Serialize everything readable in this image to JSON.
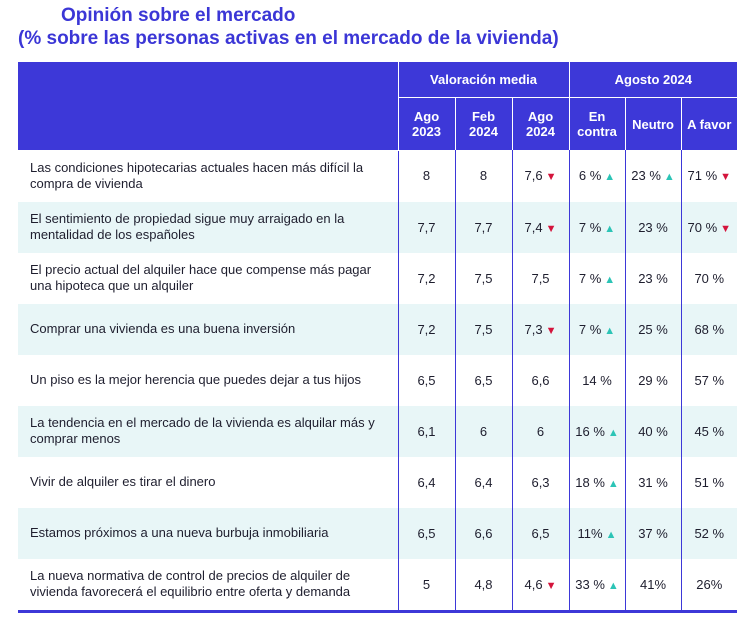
{
  "title": {
    "line1": "Opinión sobre el mercado",
    "line2": "(% sobre las personas activas en el mercado de la vivienda)"
  },
  "header": {
    "group1": "Valoración media",
    "group2": "Agosto 2024",
    "cols": [
      {
        "l1": "Ago",
        "l2": "2023"
      },
      {
        "l1": "Feb",
        "l2": "2024"
      },
      {
        "l1": "Ago",
        "l2": "2024"
      },
      {
        "l1": "En",
        "l2": "contra"
      },
      {
        "l1": "Neutro",
        "l2": ""
      },
      {
        "l1": "A favor",
        "l2": ""
      }
    ]
  },
  "trend_icons": {
    "up": "triangle-up-icon",
    "down": "triangle-down-icon",
    "up_color": "#2cc4b6",
    "down_color": "#d4143c"
  },
  "rows": [
    {
      "label": "Las condiciones hipotecarias actuales hacen más difícil la compra de vivienda",
      "cells": [
        {
          "v": "8"
        },
        {
          "v": "8"
        },
        {
          "v": "7,6",
          "t": "down"
        },
        {
          "v": "6 %",
          "t": "up"
        },
        {
          "v": "23 %",
          "t": "up"
        },
        {
          "v": "71 %",
          "t": "down"
        }
      ]
    },
    {
      "label": "El sentimiento de propiedad sigue muy arraigado en la mentalidad de los españoles",
      "cells": [
        {
          "v": "7,7"
        },
        {
          "v": "7,7"
        },
        {
          "v": "7,4",
          "t": "down"
        },
        {
          "v": "7 %",
          "t": "up"
        },
        {
          "v": "23 %"
        },
        {
          "v": "70 %",
          "t": "down"
        }
      ]
    },
    {
      "label": "El precio actual del alquiler hace que compense más pagar una hipoteca que un alquiler",
      "cells": [
        {
          "v": "7,2"
        },
        {
          "v": "7,5"
        },
        {
          "v": "7,5"
        },
        {
          "v": "7 %",
          "t": "up"
        },
        {
          "v": "23 %"
        },
        {
          "v": "70 %"
        }
      ]
    },
    {
      "label": "Comprar una vivienda es una buena inversión",
      "cells": [
        {
          "v": "7,2"
        },
        {
          "v": "7,5"
        },
        {
          "v": "7,3",
          "t": "down"
        },
        {
          "v": "7 %",
          "t": "up"
        },
        {
          "v": "25 %"
        },
        {
          "v": "68 %"
        }
      ]
    },
    {
      "label": "Un piso es la mejor herencia que puedes dejar a tus hijos",
      "cells": [
        {
          "v": "6,5"
        },
        {
          "v": "6,5"
        },
        {
          "v": "6,6"
        },
        {
          "v": "14 %"
        },
        {
          "v": "29 %"
        },
        {
          "v": "57 %"
        }
      ]
    },
    {
      "label": "La tendencia en el mercado de la vivienda es alquilar más y comprar menos",
      "cells": [
        {
          "v": "6,1"
        },
        {
          "v": "6"
        },
        {
          "v": "6"
        },
        {
          "v": "16 %",
          "t": "up"
        },
        {
          "v": "40 %"
        },
        {
          "v": "45 %"
        }
      ]
    },
    {
      "label": "Vivir de alquiler es tirar el dinero",
      "cells": [
        {
          "v": "6,4"
        },
        {
          "v": "6,4"
        },
        {
          "v": "6,3"
        },
        {
          "v": "18 %",
          "t": "up"
        },
        {
          "v": "31 %"
        },
        {
          "v": "51 %"
        }
      ]
    },
    {
      "label": "Estamos próximos a una nueva burbuja inmobiliaria",
      "cells": [
        {
          "v": "6,5"
        },
        {
          "v": "6,6"
        },
        {
          "v": "6,5"
        },
        {
          "v": "11%",
          "t": "up"
        },
        {
          "v": "37 %"
        },
        {
          "v": "52 %"
        }
      ]
    },
    {
      "label": "La nueva normativa de control de precios de alquiler de vivienda favorecerá el equilibrio entre oferta y demanda",
      "cells": [
        {
          "v": "5"
        },
        {
          "v": "4,8"
        },
        {
          "v": "4,6",
          "t": "down"
        },
        {
          "v": "33 %",
          "t": "up"
        },
        {
          "v": "41%"
        },
        {
          "v": "26%"
        }
      ]
    }
  ]
}
